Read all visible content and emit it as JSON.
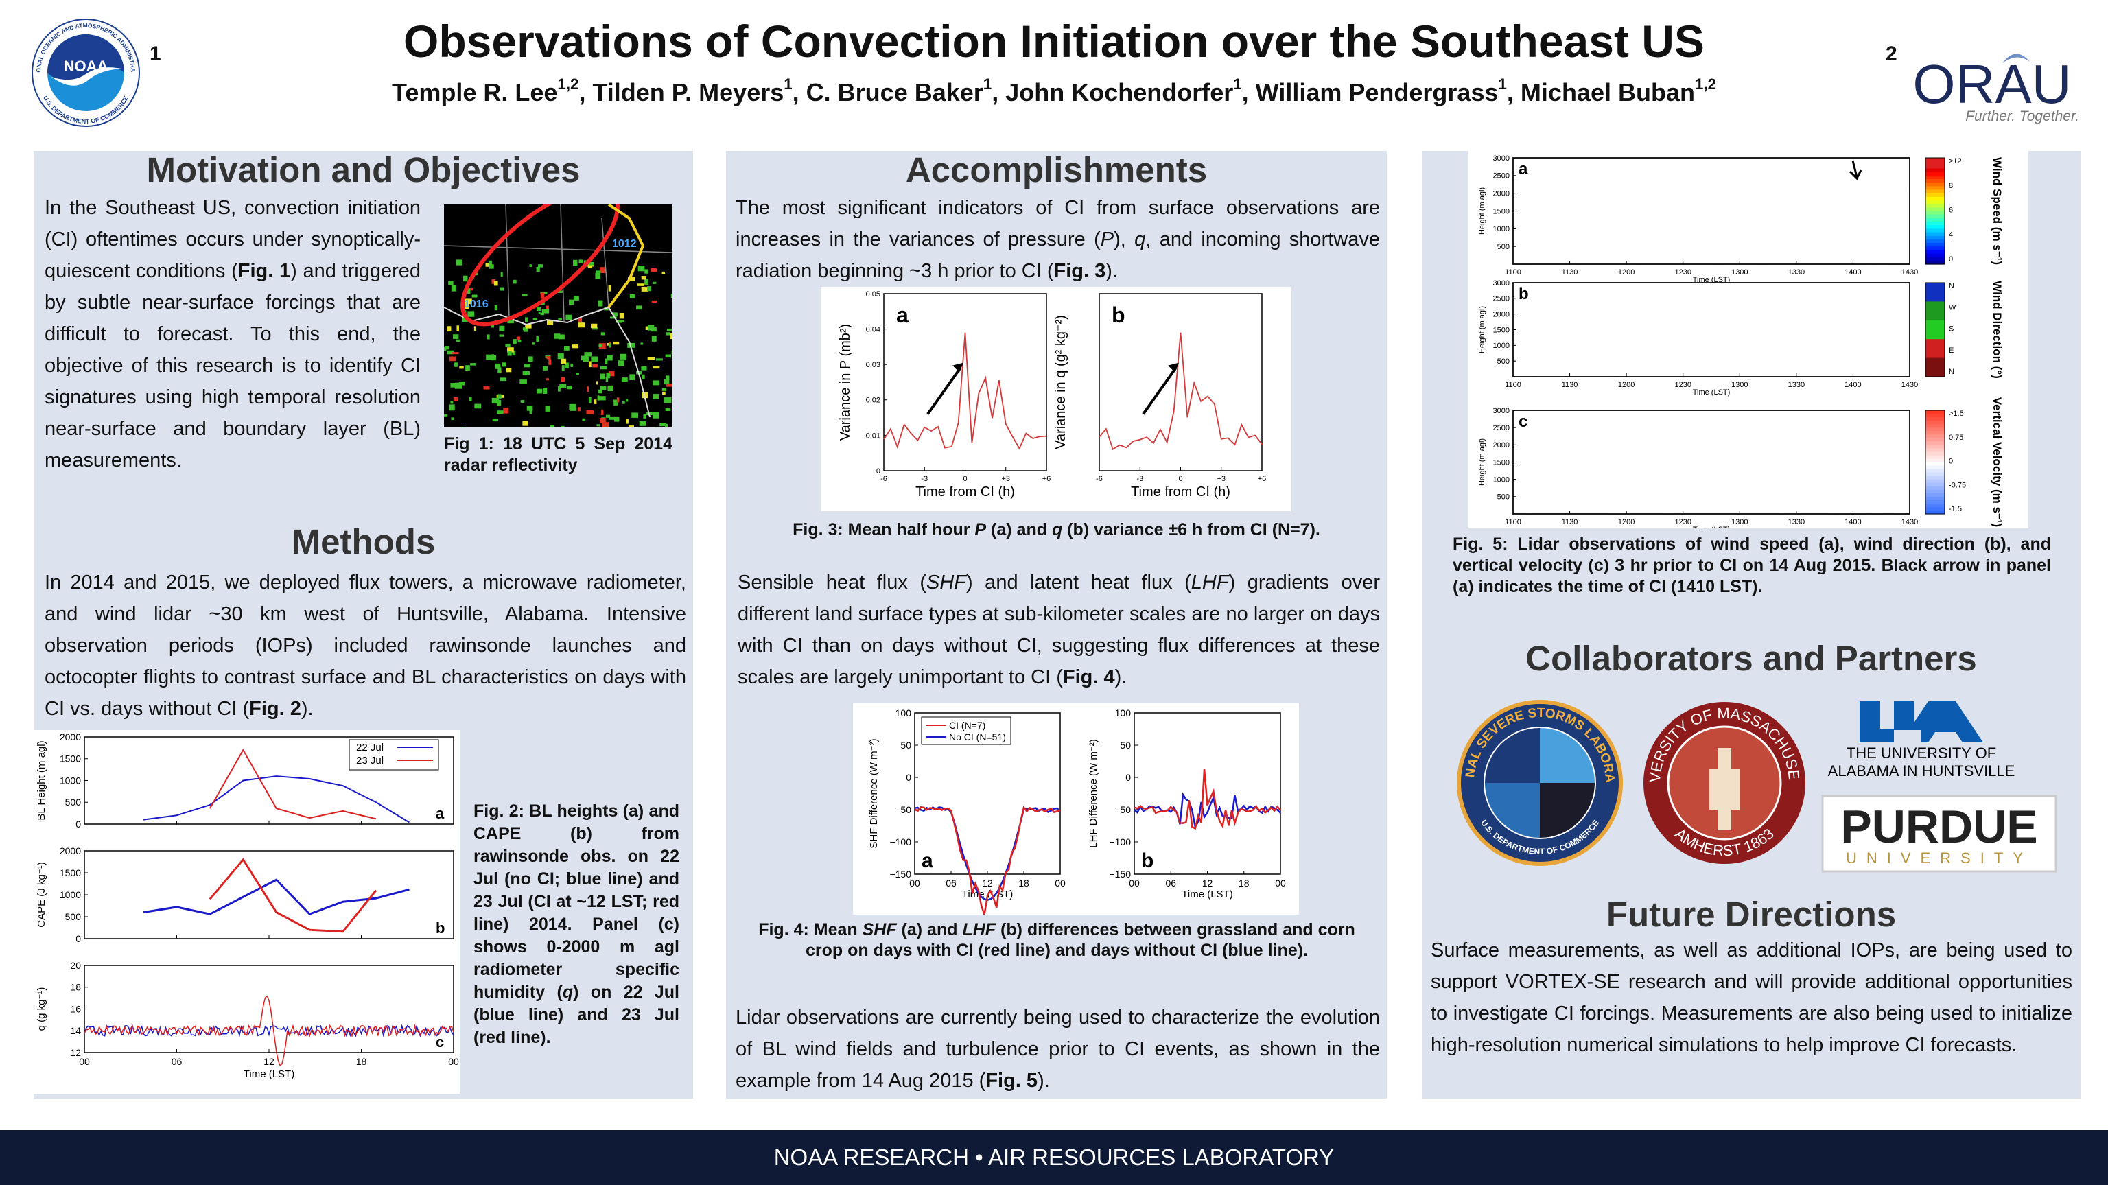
{
  "header": {
    "title": "Observations of Convection Initiation over the Southeast US",
    "authors": {
      "runs": [
        {
          "text": "Temple R. Lee"
        },
        {
          "text": "1,2",
          "style": "sup"
        },
        {
          "text": ", Tilden P. Meyers"
        },
        {
          "text": "1",
          "style": "sup"
        },
        {
          "text": ", C. Bruce Baker"
        },
        {
          "text": "1",
          "style": "sup"
        },
        {
          "text": ", John Kochendorfer"
        },
        {
          "text": "1",
          "style": "sup"
        },
        {
          "text": ", William Pendergrass"
        },
        {
          "text": "1",
          "style": "sup"
        },
        {
          "text": ", Michael Buban"
        },
        {
          "text": "1,2",
          "style": "sup"
        }
      ]
    },
    "aff_left": "1",
    "aff_right": "2",
    "noaa_logo": "NOAA",
    "noaa_ring_top": "NATIONAL OCEANIC AND ATMOSPHERIC ADMINISTRATION",
    "noaa_ring_bottom": "U.S. DEPARTMENT OF COMMERCE",
    "orau_logo": "ORAU",
    "orau_tagline": "Further. Together."
  },
  "motivation": {
    "heading": "Motivation and Objectives",
    "paragraph": {
      "runs": [
        {
          "text": "In the Southeast US, convection initiation (CI) oftentimes occurs under synoptically-quiescent conditions ("
        },
        {
          "text": "Fig. 1",
          "style": "b"
        },
        {
          "text": ") and triggered by subtle near-surface forcings that are difficult to forecast. To this end, the objective of this research is to identify CI signatures using high temporal resolution near-surface and boundary layer (BL) measurements."
        }
      ]
    },
    "fig1": {
      "labels": [
        "1016",
        "1012"
      ],
      "caption": {
        "runs": [
          {
            "text": "Fig 1: 18 UTC 5 Sep 2014 radar reflectivity"
          }
        ]
      }
    }
  },
  "methods": {
    "heading": "Methods",
    "paragraph": {
      "runs": [
        {
          "text": "In 2014 and 2015, we deployed flux towers, a microwave radiometer, and wind lidar ~30 km west of Huntsville, Alabama. Intensive observation periods (IOPs) included rawinsonde launches and octocopter flights to contrast surface and BL characteristics on days with CI vs. days without CI ("
        },
        {
          "text": "Fig. 2",
          "style": "b"
        },
        {
          "text": ")."
        }
      ]
    },
    "fig2": {
      "legend": [
        "22 Jul",
        "23 Jul"
      ],
      "xticks": [
        "00",
        "06",
        "12",
        "18",
        "00"
      ],
      "xlabel": "Time (LST)",
      "panels": [
        {
          "letter": "a",
          "ylabel": "BL Height (m agl)",
          "yticks": [
            "0",
            "500",
            "1000",
            "1500",
            "2000"
          ]
        },
        {
          "letter": "b",
          "ylabel": "CAPE (J kg⁻¹)",
          "yticks": [
            "0",
            "500",
            "1000",
            "1500",
            "2000"
          ]
        },
        {
          "letter": "c",
          "ylabel": "q (g kg⁻¹)",
          "yticks": [
            "12",
            "14",
            "16",
            "18",
            "20"
          ]
        }
      ],
      "caption": {
        "runs": [
          {
            "text": "Fig. 2: BL heights (a) and CAPE (b) from rawinsonde obs. on 22 Jul (no CI; blue line) and 23 Jul (CI at ~12 LST; red line) 2014. Panel (c) shows 0-2000 m agl radiometer specific humidity ("
          },
          {
            "text": "q",
            "style": "i"
          },
          {
            "text": ") on 22 Jul (blue line) and 23 Jul (red line)."
          }
        ]
      }
    }
  },
  "accomplishments": {
    "heading": "Accomplishments",
    "paragraph1": {
      "runs": [
        {
          "text": "The most significant indicators of CI from surface observations are increases in the variances of pressure ("
        },
        {
          "text": "P",
          "style": "i"
        },
        {
          "text": "), "
        },
        {
          "text": "q",
          "style": "i"
        },
        {
          "text": ", and incoming shortwave radiation beginning ~3 h prior to CI ("
        },
        {
          "text": "Fig. 3",
          "style": "b"
        },
        {
          "text": ")."
        }
      ]
    },
    "fig3": {
      "xticks": [
        "-6",
        "-3",
        "0",
        "+3",
        "+6"
      ],
      "xlabel": "Time from CI (h)",
      "panels": [
        {
          "letter": "a",
          "ylabel": "Variance in P (mb²)",
          "yticks": [
            "0",
            "0.01",
            "0.02",
            "0.03",
            "0.04",
            "0.05"
          ]
        },
        {
          "letter": "b",
          "ylabel": "Variance in q (g² kg⁻²)"
        }
      ],
      "caption": {
        "runs": [
          {
            "text": "Fig. 3: Mean half hour "
          },
          {
            "text": "P",
            "style": "i"
          },
          {
            "text": " (a) and "
          },
          {
            "text": "q",
            "style": "i"
          },
          {
            "text": " (b) variance ±6 h from CI (N=7)."
          }
        ]
      }
    },
    "paragraph2": {
      "runs": [
        {
          "text": "Sensible heat flux ("
        },
        {
          "text": "SHF",
          "style": "i"
        },
        {
          "text": ") and latent heat flux ("
        },
        {
          "text": "LHF",
          "style": "i"
        },
        {
          "text": ") gradients over different land surface types at sub-kilometer scales are no larger on days with CI than on days without CI, suggesting flux differences at these scales are largely unimportant to CI ("
        },
        {
          "text": "Fig. 4",
          "style": "b"
        },
        {
          "text": ")."
        }
      ]
    },
    "fig4": {
      "legend": [
        "CI (N=7)",
        "No CI (N=51)"
      ],
      "xticks": [
        "00",
        "06",
        "12",
        "18",
        "00"
      ],
      "xlabel": "Time (LST)",
      "yticks": [
        "−150",
        "−100",
        "−50",
        "0",
        "50",
        "100"
      ],
      "panels": [
        {
          "letter": "a",
          "ylabel": "SHF Difference (W m⁻²)"
        },
        {
          "letter": "b",
          "ylabel": "LHF Difference (W m⁻²)"
        }
      ],
      "caption": {
        "runs": [
          {
            "text": "Fig. 4: Mean "
          },
          {
            "text": "SHF",
            "style": "i"
          },
          {
            "text": " (a) and "
          },
          {
            "text": "LHF",
            "style": "i"
          },
          {
            "text": " (b) differences between grassland and corn crop on days with CI (red line) and days without CI (blue line)."
          }
        ]
      }
    },
    "paragraph3": {
      "runs": [
        {
          "text": "Lidar observations are currently being used to characterize the evolution of BL wind fields and turbulence prior to CI events, as shown in the example from 14 Aug 2015 ("
        },
        {
          "text": "Fig. 5",
          "style": "b"
        },
        {
          "text": ")."
        }
      ]
    }
  },
  "fig5": {
    "xticks": [
      "1100",
      "1130",
      "1200",
      "1230",
      "1300",
      "1330",
      "1400",
      "1430"
    ],
    "yticks": [
      "500",
      "1000",
      "1500",
      "2000",
      "2500",
      "3000"
    ],
    "xlabel": "Time (LST)",
    "ylabel": "Height (m agl)",
    "panels": [
      {
        "letter": "a",
        "title": "Wind Speed (m s⁻¹)",
        "scale": [
          ">12",
          "8",
          "6",
          "4",
          "0"
        ]
      },
      {
        "letter": "b",
        "title": "Wind Direction (°)",
        "scale": [
          "N",
          "W",
          "S",
          "E",
          "N"
        ]
      },
      {
        "letter": "c",
        "title": "Vertical Velocity (m s⁻¹)",
        "scale": [
          ">1.5",
          "0.75",
          "0",
          "-0.75",
          "-1.5"
        ]
      }
    ],
    "caption": {
      "runs": [
        {
          "text": "Fig. 5: Lidar observations of wind speed (a), wind direction (b), and vertical velocity (c) 3 hr prior to CI on 14 Aug 2015. Black arrow in panel (a) indicates the time of CI (1410 LST)."
        }
      ]
    }
  },
  "collaborators": {
    "heading": "Collaborators and Partners",
    "nssl": "NATIONAL SEVERE STORMS LABORATORY",
    "nssl_inner": "U.S. DEPARTMENT OF COMMERCE",
    "umass": "UNIVERSITY OF MASSACHUSETTS",
    "umass_bottom": "AMHERST 1863",
    "uah": [
      "THE UNIVERSITY OF",
      "ALABAMA IN HUNTSVILLE"
    ],
    "purdue": "PURDUE",
    "purdue_sub": "UNIVERSITY"
  },
  "future": {
    "heading": "Future Directions",
    "paragraph": {
      "runs": [
        {
          "text": "Surface measurements, as well as additional IOPs, are being used to support VORTEX-SE research and will provide additional opportunities to investigate CI forcings. Measurements are also being used to initialize high-resolution numerical simulations to help improve CI forecasts."
        }
      ]
    }
  },
  "footer": "NOAA RESEARCH • AIR RESOURCES LABORATORY"
}
